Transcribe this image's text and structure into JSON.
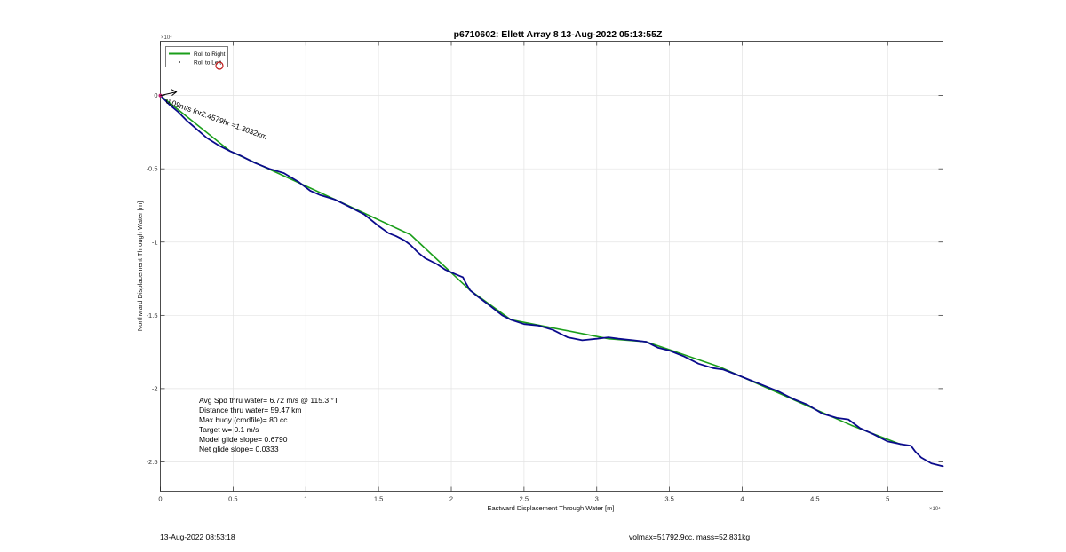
{
  "chart_data": {
    "type": "line",
    "title": "p6710602: Ellett Array 8 13-Aug-2022 05:13:55Z",
    "xlabel": "Eastward Displacement Through Water [m]",
    "ylabel": "Northward Displacement Through Water [m]",
    "x_multiplier": "×10⁴",
    "y_multiplier": "×10⁴",
    "xlim": [
      0,
      53800
    ],
    "ylim": [
      -27000,
      3700
    ],
    "xticks": [
      0,
      5000,
      10000,
      15000,
      20000,
      25000,
      30000,
      35000,
      40000,
      45000,
      50000
    ],
    "xtick_labels": [
      "0",
      "0.5",
      "1",
      "1.5",
      "2",
      "2.5",
      "3",
      "3.5",
      "4",
      "4.5",
      "5"
    ],
    "yticks": [
      0,
      -5000,
      -10000,
      -15000,
      -20000,
      -25000
    ],
    "ytick_labels": [
      "0",
      "-0.5",
      "-1",
      "-1.5",
      "-2",
      "-2.5"
    ],
    "grid": true,
    "legend_position": "top-left",
    "series": [
      {
        "name": "Roll to Right",
        "color": "#1a9e1a",
        "x": [
          0,
          4800,
          10700,
          17200,
          21300,
          24100,
          30800,
          33400,
          38400,
          47500,
          50900
        ],
        "y": [
          0,
          -3800,
          -6500,
          -9500,
          -13300,
          -15300,
          -16600,
          -16800,
          -18500,
          -22500,
          -23800
        ]
      },
      {
        "name": "Roll to Left",
        "color": "#000000",
        "x": [],
        "y": []
      },
      {
        "name": "",
        "color": "#0a0a8c",
        "x": [
          0,
          600,
          1200,
          1800,
          2500,
          3200,
          4000,
          4800,
          5500,
          6500,
          7500,
          8500,
          9500,
          10300,
          11000,
          12000,
          13000,
          14000,
          15000,
          15700,
          16200,
          16800,
          17200,
          17700,
          18200,
          19000,
          19600,
          20300,
          20800,
          21000,
          21300,
          21800,
          22600,
          23500,
          24100,
          25000,
          26000,
          27000,
          28000,
          29000,
          30000,
          30800,
          31500,
          32500,
          33400,
          34200,
          35000,
          36000,
          37000,
          38000,
          38700,
          39500,
          40500,
          41500,
          42500,
          43500,
          44500,
          45500,
          46500,
          47300,
          48100,
          49000,
          50000,
          51000,
          51600,
          51900,
          52300,
          53000,
          53800
        ],
        "y": [
          0,
          -600,
          -1100,
          -1700,
          -2300,
          -2900,
          -3400,
          -3800,
          -4100,
          -4600,
          -5000,
          -5300,
          -5900,
          -6500,
          -6800,
          -7100,
          -7600,
          -8100,
          -8900,
          -9400,
          -9600,
          -9900,
          -10200,
          -10700,
          -11100,
          -11500,
          -11900,
          -12200,
          -12400,
          -12800,
          -13300,
          -13700,
          -14300,
          -15000,
          -15300,
          -15600,
          -15700,
          -16000,
          -16500,
          -16700,
          -16600,
          -16500,
          -16600,
          -16700,
          -16800,
          -17200,
          -17400,
          -17800,
          -18300,
          -18600,
          -18700,
          -19000,
          -19400,
          -19800,
          -20200,
          -20700,
          -21100,
          -21700,
          -22000,
          -22100,
          -22700,
          -23100,
          -23600,
          -23800,
          -23900,
          -24300,
          -24700,
          -25100,
          -25300
        ]
      }
    ],
    "arrow_annotation": "0.09m/s for2.4579hr =1.3032km",
    "stats": [
      "Avg Spd thru water=  6.72 m/s @ 115.3 °T",
      "Distance thru water= 59.47 km",
      "Max buoy (cmdfile)= 80 cc",
      "Target w= 0.1 m/s",
      "Model glide slope= 0.6790",
      "Net glide slope= 0.0333"
    ]
  },
  "footer": {
    "timestamp": "13-Aug-2022 08:53:18",
    "summary": "volmax=51792.9cc, mass=52.831kg"
  }
}
